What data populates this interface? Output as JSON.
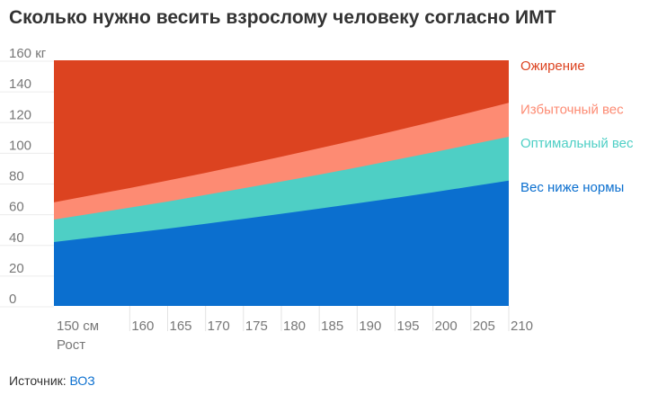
{
  "title": "Сколько нужно весить взрослому человеку согласно ИМТ",
  "source": {
    "label": "Источник:",
    "name": "ВОЗ"
  },
  "chart_data": {
    "type": "area",
    "stacked_boundaries": true,
    "x": [
      150,
      160,
      165,
      170,
      175,
      180,
      185,
      190,
      195,
      200,
      205,
      210
    ],
    "x_tick_labels": [
      "150 см",
      "160",
      "165",
      "170",
      "175",
      "180",
      "185",
      "190",
      "195",
      "200",
      "205",
      "210"
    ],
    "xlabel": "Рост",
    "y_tick_labels": [
      "160 кг",
      "140",
      "120",
      "100",
      "80",
      "60",
      "40",
      "20",
      "0"
    ],
    "y_ticks": [
      160,
      140,
      120,
      100,
      80,
      60,
      40,
      20,
      0
    ],
    "xlim": [
      150,
      210
    ],
    "ylim": [
      0,
      160
    ],
    "grid": true,
    "legend_placement": "right",
    "series": [
      {
        "name": "Вес ниже нормы",
        "color": "#0b6fcf",
        "values": [
          41.6,
          47.4,
          50.3,
          53.5,
          56.7,
          60.0,
          63.4,
          66.8,
          70.3,
          74.0,
          77.8,
          81.6
        ]
      },
      {
        "name": "Оптимальный вес",
        "color": "#4ecfc5",
        "values": [
          56.3,
          64.0,
          68.0,
          72.3,
          76.6,
          81.0,
          85.5,
          90.2,
          95.1,
          100.0,
          105.1,
          110.2
        ]
      },
      {
        "name": "Избыточный вес",
        "color": "#fd8b73",
        "values": [
          67.5,
          76.8,
          81.7,
          86.7,
          91.9,
          97.2,
          102.7,
          108.3,
          114.1,
          120.0,
          126.1,
          132.3
        ]
      },
      {
        "name": "Ожирение",
        "color": "#dc4320",
        "values": [
          160,
          160,
          160,
          160,
          160,
          160,
          160,
          160,
          160,
          160,
          160,
          160
        ]
      }
    ]
  }
}
